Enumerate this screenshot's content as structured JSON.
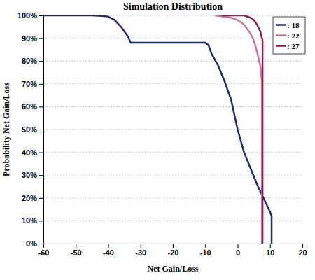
{
  "chart_data": {
    "type": "line",
    "title": "Simulation Distribution",
    "x_label": "Net Gain/Loss",
    "y_label": "Probability Net Gain/Loss",
    "xlim": [
      -60,
      20
    ],
    "xticks": [
      -60,
      -50,
      -40,
      -30,
      -20,
      -10,
      0,
      10,
      20
    ],
    "ylim": [
      0,
      100
    ],
    "yticks": [
      {
        "value": 0,
        "label": "0%"
      },
      {
        "value": 10,
        "label": "10%"
      },
      {
        "value": 20,
        "label": "20%"
      },
      {
        "value": 30,
        "label": "30%"
      },
      {
        "value": 40,
        "label": "40%"
      },
      {
        "value": 50,
        "label": "50%"
      },
      {
        "value": 60,
        "label": "60%"
      },
      {
        "value": 70,
        "label": "70%"
      },
      {
        "value": 80,
        "label": "80%"
      },
      {
        "value": 90,
        "label": "90%"
      },
      {
        "value": 100,
        "label": "100%"
      }
    ],
    "grid": true,
    "legend": "top-right",
    "series": [
      {
        "name": ": 18",
        "color": "#1f2a6e",
        "x": [
          -60,
          -45,
          -42,
          -40,
          -38,
          -36,
          -34,
          -33,
          -10,
          -9,
          -8,
          -6,
          -4,
          -2,
          0,
          2,
          4,
          6,
          8,
          10,
          10.5,
          10.5
        ],
        "values": [
          100,
          100,
          99.8,
          99.5,
          98,
          95,
          91,
          88,
          88,
          87,
          83,
          78,
          71,
          63,
          50,
          40,
          33,
          26,
          20,
          14,
          12,
          0
        ]
      },
      {
        "name": ": 22",
        "color": "#d070a8",
        "x": [
          -7,
          -2,
          0,
          2,
          4,
          5,
          6,
          7,
          7.5,
          7.5
        ],
        "values": [
          100,
          99,
          98,
          96,
          92,
          89,
          84,
          78,
          71,
          0
        ]
      },
      {
        "name": ": 27",
        "color": "#8b1a4e",
        "x": [
          -5,
          2,
          4,
          5,
          6,
          7,
          7.7,
          7.7
        ],
        "values": [
          100,
          100,
          99,
          98,
          96,
          93,
          89,
          0
        ]
      }
    ]
  }
}
